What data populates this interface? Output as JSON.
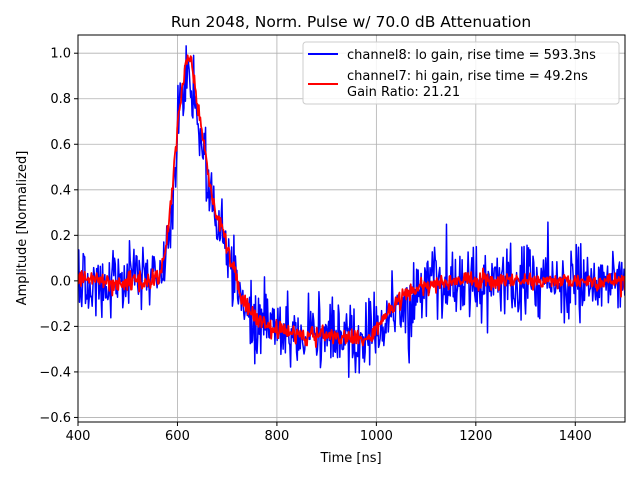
{
  "chart_data": {
    "type": "line",
    "title": "Run 2048, Norm. Pulse w/ 70.0 dB Attenuation",
    "xlabel": "Time [ns]",
    "ylabel": "Amplitude [Normalized]",
    "xlim": [
      400,
      1500
    ],
    "ylim": [
      -0.62,
      1.08
    ],
    "grid": true,
    "xticks": [
      400,
      600,
      800,
      1000,
      1200,
      1400
    ],
    "xtick_labels": [
      "400",
      "600",
      "800",
      "1000",
      "1200",
      "1400"
    ],
    "yticks": [
      -0.6,
      -0.4,
      -0.2,
      0.0,
      0.2,
      0.4,
      0.6,
      0.8,
      1.0
    ],
    "ytick_labels": [
      "−0.6",
      "−0.4",
      "−0.2",
      "0.0",
      "0.2",
      "0.4",
      "0.6",
      "0.8",
      "1.0"
    ],
    "legend_position": "top-right",
    "legend_extra_text": "Gain Ratio: 21.21",
    "series": [
      {
        "name": "channel8: lo gain, rise time = 593.3ns",
        "color": "#0000ff",
        "noise": 0.08,
        "x": [
          400,
          480,
          560,
          575,
          590,
          600,
          610,
          620,
          630,
          640,
          650,
          660,
          670,
          690,
          710,
          730,
          750,
          780,
          820,
          860,
          900,
          940,
          970,
          990,
          1010,
          1040,
          1070,
          1100,
          1150,
          1200,
          1300,
          1400,
          1500
        ],
        "y": [
          0.0,
          0.0,
          0.0,
          0.05,
          0.35,
          0.65,
          0.82,
          0.92,
          0.85,
          0.72,
          0.62,
          0.48,
          0.35,
          0.2,
          0.05,
          -0.08,
          -0.15,
          -0.2,
          -0.22,
          -0.24,
          -0.24,
          -0.25,
          -0.26,
          -0.24,
          -0.2,
          -0.14,
          -0.08,
          -0.04,
          -0.01,
          0.0,
          0.0,
          0.0,
          0.0
        ]
      },
      {
        "name": "channel7: hi gain, rise time = 49.2ns",
        "color": "#ff0000",
        "noise": 0.02,
        "x": [
          400,
          480,
          560,
          575,
          590,
          600,
          610,
          620,
          630,
          640,
          650,
          660,
          670,
          690,
          710,
          730,
          750,
          780,
          820,
          860,
          900,
          940,
          970,
          990,
          1010,
          1040,
          1070,
          1100,
          1150,
          1200,
          1300,
          1400,
          1500
        ],
        "y": [
          0.0,
          0.0,
          0.0,
          0.1,
          0.4,
          0.68,
          0.86,
          1.0,
          0.93,
          0.78,
          0.66,
          0.5,
          0.36,
          0.22,
          0.07,
          -0.07,
          -0.15,
          -0.2,
          -0.23,
          -0.24,
          -0.24,
          -0.25,
          -0.26,
          -0.24,
          -0.18,
          -0.1,
          -0.04,
          -0.02,
          0.0,
          0.0,
          0.0,
          0.0,
          0.0
        ]
      }
    ]
  }
}
